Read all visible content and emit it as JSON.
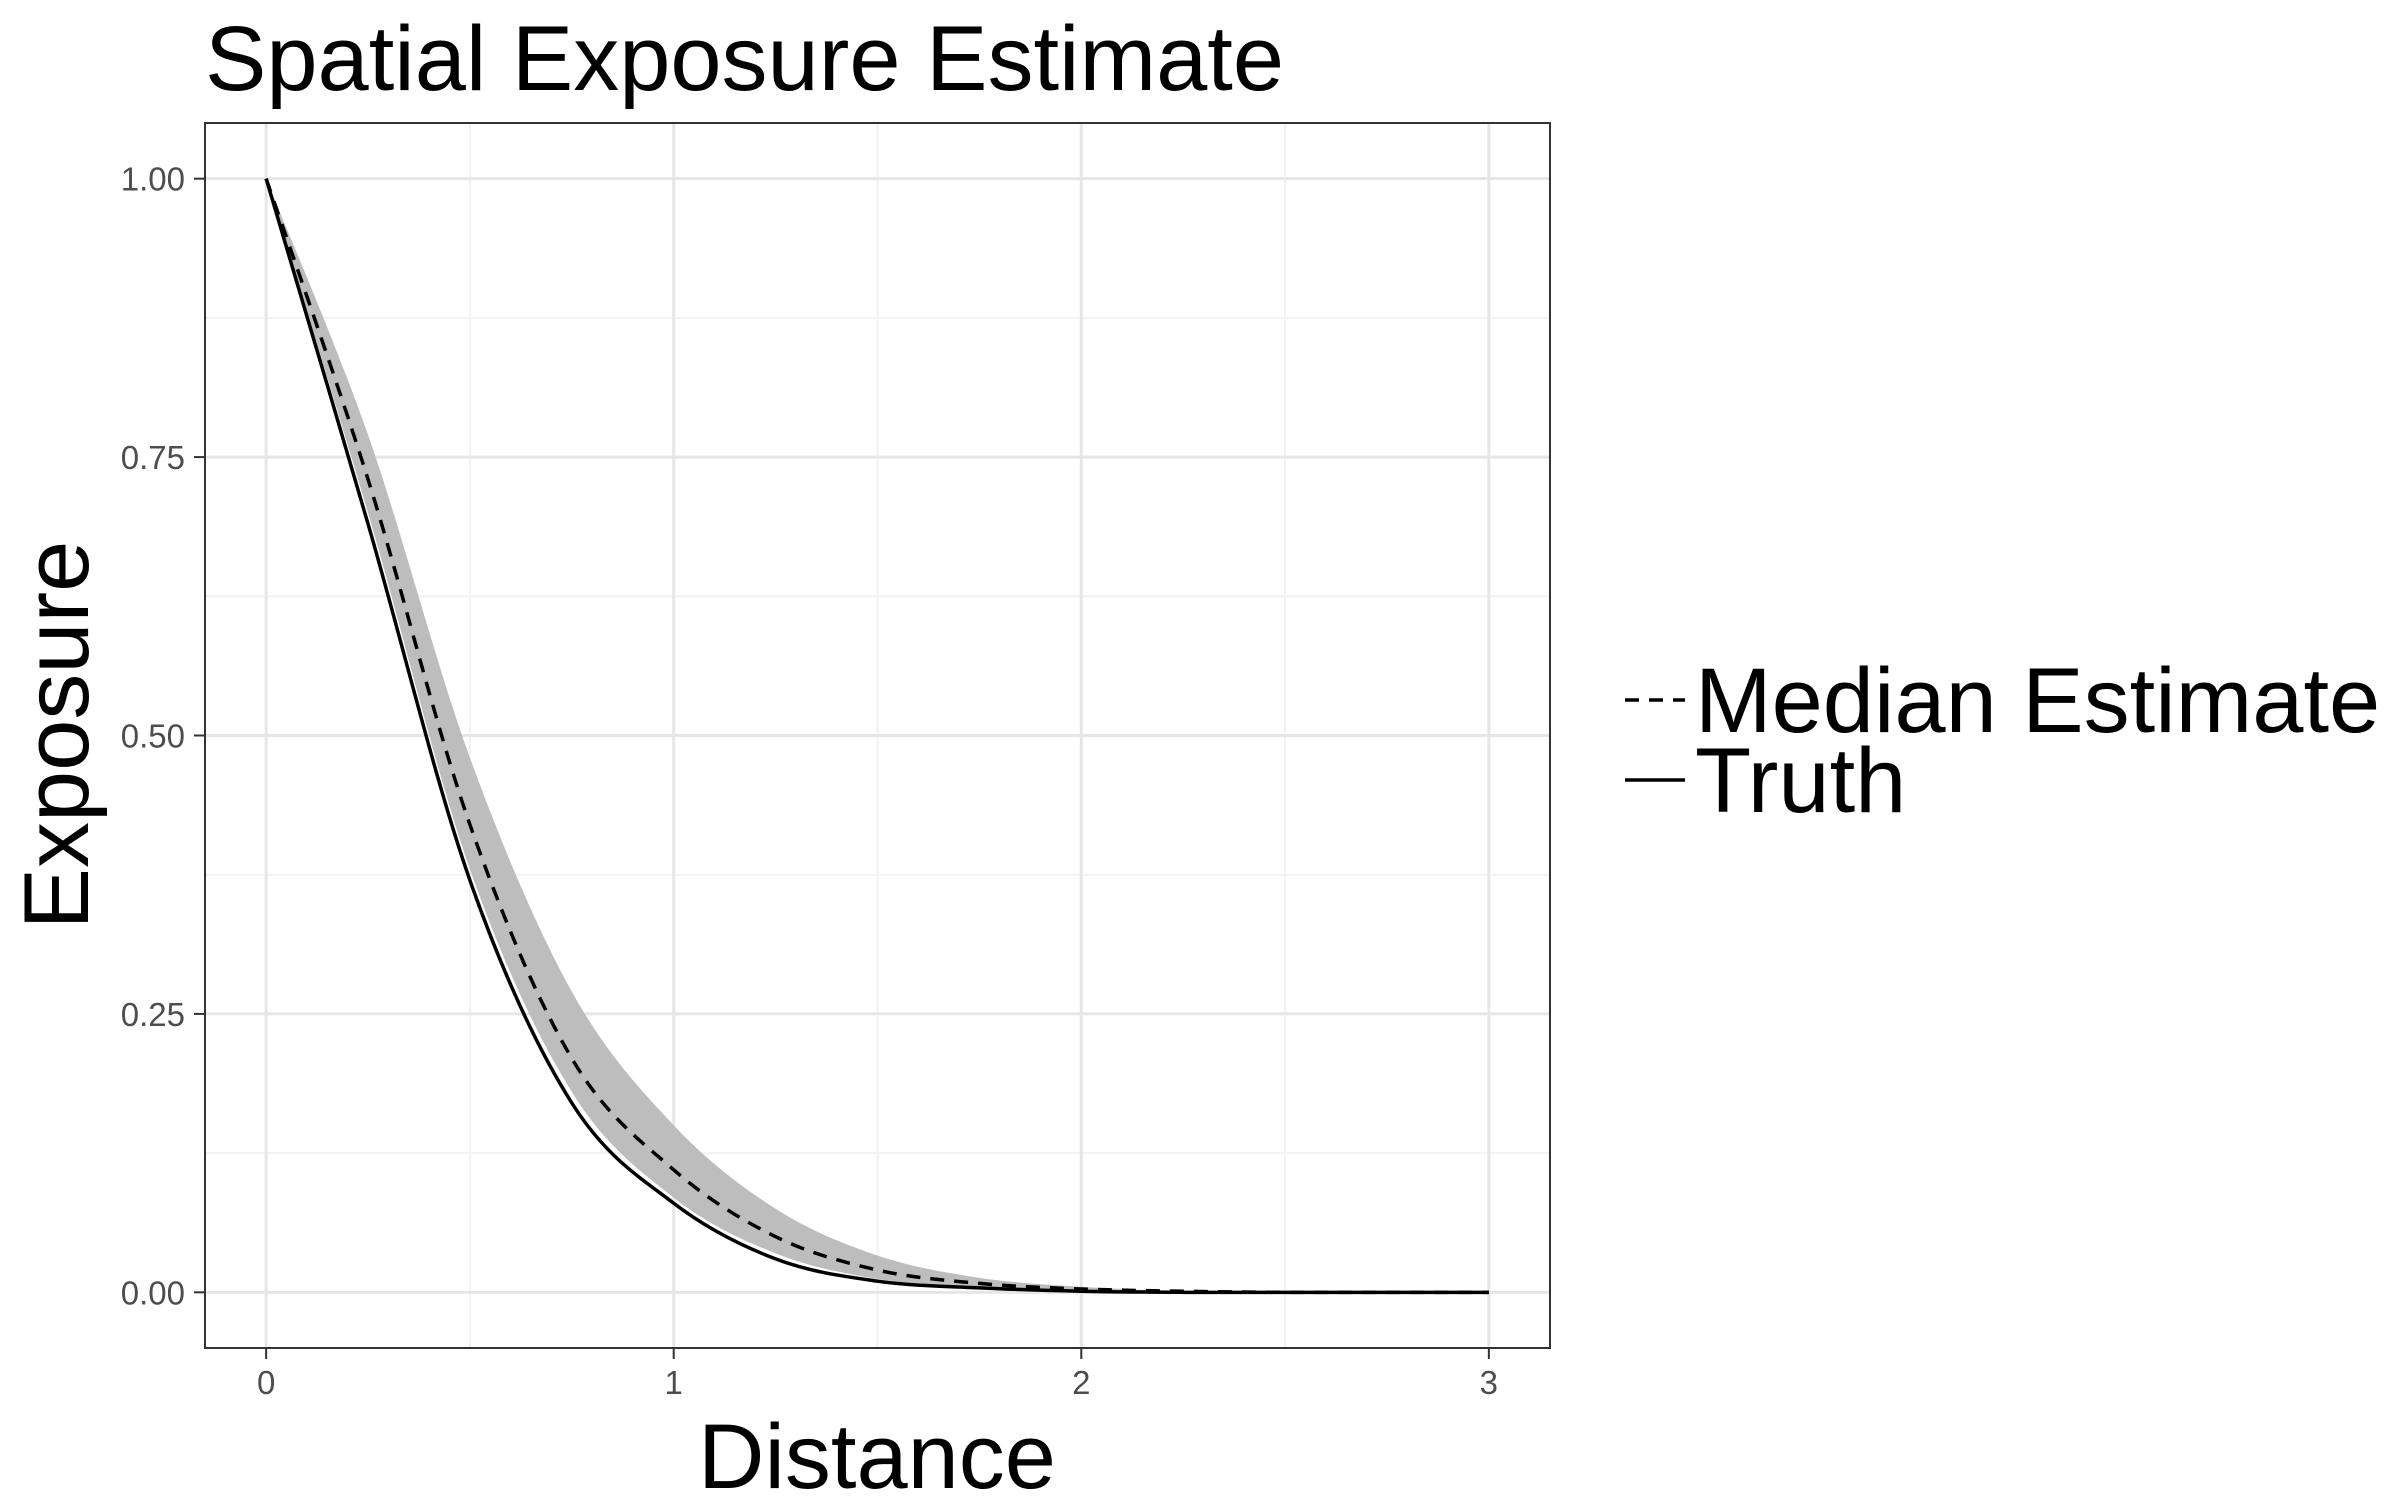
{
  "chart_data": {
    "type": "line",
    "title": "Spatial Exposure Estimate",
    "xlabel": "Distance",
    "ylabel": "Exposure",
    "xlim": [
      -0.15,
      3.15
    ],
    "ylim": [
      -0.05,
      1.05
    ],
    "x_ticks": [
      "0",
      "1",
      "2",
      "3"
    ],
    "y_ticks": [
      "0.00",
      "0.25",
      "0.50",
      "0.75",
      "1.00"
    ],
    "grid": true,
    "legend_position": "right",
    "x": [
      0,
      0.25,
      0.5,
      0.75,
      1.0,
      1.25,
      1.5,
      1.75,
      2.0,
      2.25,
      2.5,
      2.75,
      3.0
    ],
    "series": [
      {
        "name": "Median Estimate",
        "line_style": "dashed",
        "values": [
          1.0,
          0.73,
          0.42,
          0.21,
          0.11,
          0.05,
          0.02,
          0.008,
          0.003,
          0.001,
          0.0,
          0.0,
          0.0
        ]
      },
      {
        "name": "Truth",
        "line_style": "solid",
        "values": [
          1.0,
          0.69,
          0.37,
          0.17,
          0.08,
          0.03,
          0.01,
          0.004,
          0.001,
          0.0,
          0.0,
          0.0,
          0.0
        ]
      }
    ],
    "ribbon": {
      "lower": [
        1.0,
        0.7,
        0.38,
        0.18,
        0.085,
        0.035,
        0.012,
        0.005,
        0.002,
        0.0,
        0.0,
        0.0,
        0.0
      ],
      "upper": [
        1.0,
        0.77,
        0.48,
        0.27,
        0.15,
        0.075,
        0.033,
        0.013,
        0.005,
        0.001,
        0.0,
        0.0,
        0.0
      ],
      "color": "#bdbdbd"
    },
    "colors": {
      "line": "#000000",
      "grid_major": "#e6e6e6",
      "grid_minor": "#f2f2f2",
      "panel_border": "#333333",
      "ribbon": "#bdbdbd"
    }
  }
}
